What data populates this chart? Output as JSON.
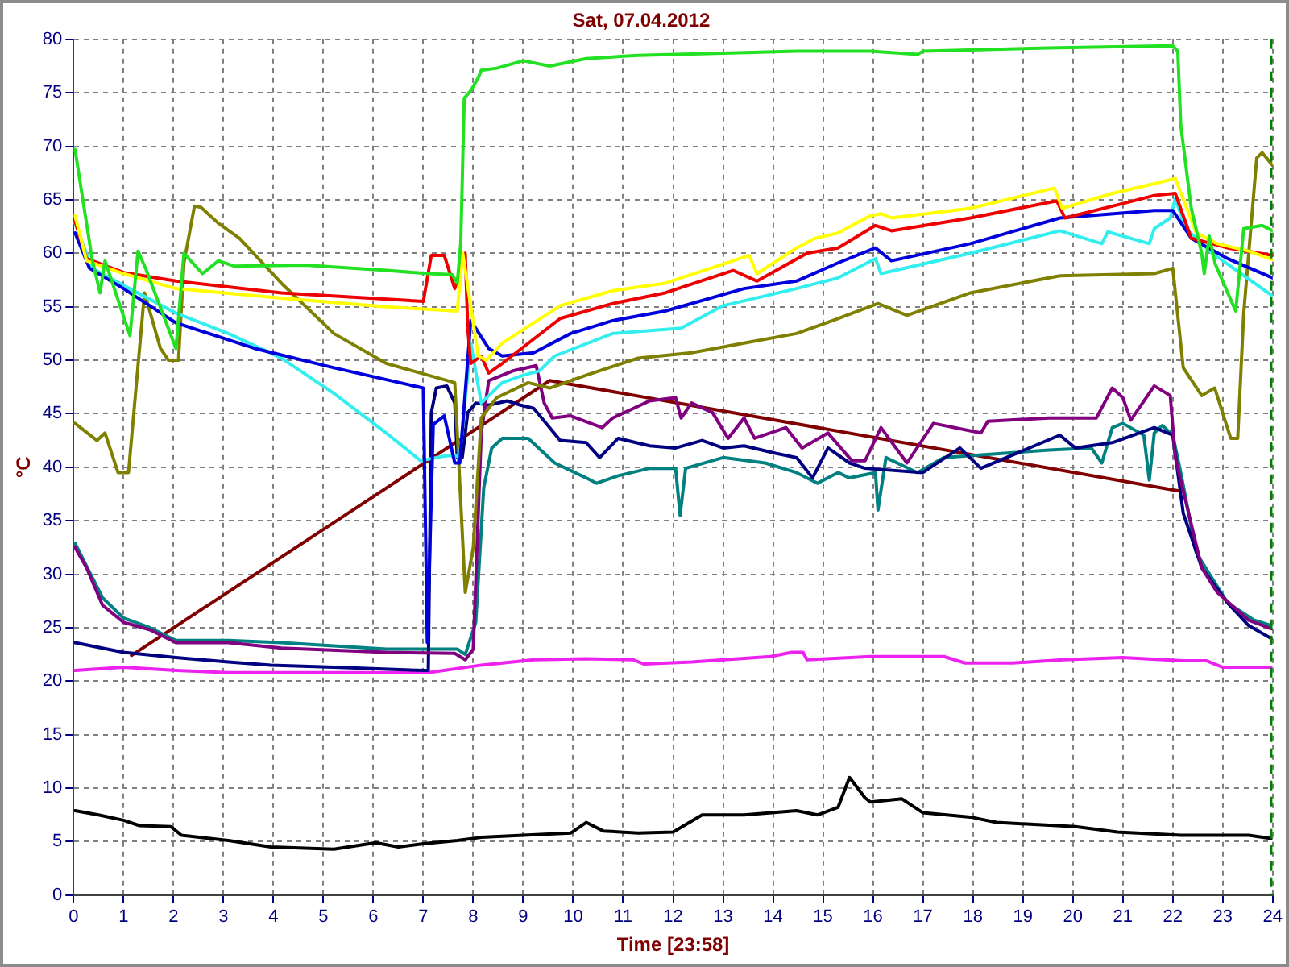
{
  "chart_data": {
    "type": "line",
    "title": "Sat, 07.04.2012",
    "xlabel": "Time [23:58]",
    "ylabel": "°C",
    "xlim": [
      0,
      24
    ],
    "xticks": [
      0,
      1,
      2,
      3,
      4,
      5,
      6,
      7,
      8,
      9,
      10,
      11,
      12,
      13,
      14,
      15,
      16,
      17,
      18,
      19,
      20,
      21,
      22,
      23,
      24
    ],
    "ylim": [
      0,
      80
    ],
    "yticks": [
      0,
      5,
      10,
      15,
      20,
      25,
      30,
      35,
      40,
      45,
      50,
      55,
      60,
      65,
      70,
      75,
      80
    ],
    "grid": true,
    "marker": "none",
    "ref_lines": [
      {
        "axis": "x",
        "value": 23.97,
        "color": "#008000",
        "line_style": "dashed"
      }
    ],
    "series": [
      {
        "color": "#22e022",
        "x": [
          0.03,
          0.37,
          0.53,
          0.63,
          1.13,
          1.29,
          1.45,
          2.05,
          2.21,
          2.58,
          2.9,
          3.21,
          4.63,
          6.26,
          7.1,
          7.58,
          7.68,
          7.75,
          7.82,
          7.95,
          8.1,
          8.16,
          8.47,
          9.0,
          9.53,
          10.26,
          11.3,
          13.0,
          14.47,
          15.95,
          16.9,
          17.0,
          19.5,
          22.0,
          22.1,
          22.16,
          22.37,
          22.58,
          22.63,
          22.73,
          22.85,
          23.1,
          23.26,
          23.42,
          23.79,
          24.0
        ],
        "values": [
          69.7,
          59.5,
          56.3,
          59.3,
          52.3,
          60.2,
          58.5,
          51.1,
          60.0,
          58.1,
          59.3,
          58.8,
          58.9,
          58.4,
          58.1,
          58.0,
          57.2,
          61.0,
          74.5,
          75.2,
          76.4,
          77.1,
          77.3,
          78.0,
          77.5,
          78.2,
          78.5,
          78.7,
          78.9,
          78.9,
          78.6,
          78.9,
          79.2,
          79.4,
          78.9,
          72.0,
          64.2,
          60.0,
          58.1,
          61.6,
          59.0,
          56.3,
          54.6,
          62.3,
          62.6,
          62.1
        ]
      },
      {
        "color": "#ffff00",
        "x": [
          0.03,
          0.26,
          1.0,
          2.05,
          4.16,
          6.26,
          7.68,
          7.79,
          8.1,
          8.26,
          8.58,
          9.74,
          10.79,
          11.84,
          13.2,
          13.52,
          13.68,
          14.47,
          14.84,
          15.3,
          15.95,
          16.16,
          16.37,
          17.95,
          19.63,
          19.79,
          20.79,
          21.63,
          22.05,
          22.47,
          22.89,
          23.52,
          24.0
        ],
        "values": [
          63.5,
          59.3,
          58.1,
          56.7,
          55.8,
          55.0,
          54.6,
          60.0,
          50.4,
          50.0,
          51.6,
          55.1,
          56.5,
          57.2,
          59.3,
          59.8,
          58.1,
          60.5,
          61.4,
          61.9,
          63.5,
          63.7,
          63.3,
          64.2,
          66.1,
          64.2,
          65.6,
          66.5,
          67.0,
          61.9,
          60.9,
          60.2,
          59.4
        ]
      },
      {
        "color": "#ee0000",
        "x": [
          0.03,
          0.26,
          1.0,
          2.05,
          4.16,
          7.0,
          7.16,
          7.42,
          7.63,
          7.84,
          7.89,
          7.95,
          8.16,
          8.31,
          8.58,
          9.74,
          10.79,
          11.84,
          13.2,
          13.68,
          14.68,
          15.3,
          16.05,
          16.37,
          17.95,
          19.68,
          19.84,
          20.79,
          21.63,
          22.05,
          22.37,
          23.1,
          24.0
        ],
        "values": [
          63.0,
          59.5,
          58.2,
          57.4,
          56.3,
          55.5,
          59.8,
          59.8,
          56.7,
          60.0,
          53.0,
          49.7,
          50.4,
          48.8,
          49.7,
          53.9,
          55.3,
          56.3,
          58.4,
          57.4,
          60.0,
          60.5,
          62.6,
          62.1,
          63.3,
          64.9,
          63.3,
          64.4,
          65.4,
          65.6,
          61.4,
          60.5,
          59.8
        ]
      },
      {
        "color": "#0000dd",
        "x": [
          0.03,
          0.32,
          1.0,
          2.05,
          3.63,
          5.21,
          7.0,
          7.08,
          7.2,
          7.42,
          7.63,
          7.73,
          7.95,
          8.31,
          8.58,
          9.21,
          9.95,
          10.79,
          11.84,
          13.42,
          14.47,
          15.3,
          16.05,
          16.37,
          17.95,
          19.74,
          21.63,
          22.0,
          22.37,
          23.1,
          24.0
        ],
        "values": [
          61.9,
          58.6,
          56.7,
          53.5,
          51.1,
          49.3,
          47.4,
          23.6,
          44.0,
          44.8,
          40.4,
          40.4,
          53.7,
          51.1,
          50.4,
          50.7,
          52.5,
          53.7,
          54.6,
          56.7,
          57.4,
          59.1,
          60.5,
          59.3,
          60.9,
          63.3,
          64.0,
          64.0,
          61.4,
          59.5,
          57.7
        ]
      },
      {
        "color": "#33eeee",
        "x": [
          0.03,
          0.37,
          1.0,
          2.05,
          3.1,
          4.16,
          5.21,
          6.26,
          6.95,
          7.37,
          7.52,
          7.73,
          7.95,
          8.16,
          8.58,
          9.0,
          9.32,
          9.63,
          10.79,
          12.16,
          13.0,
          14.47,
          15.3,
          16.05,
          16.16,
          17.95,
          19.74,
          20.58,
          20.7,
          21.53,
          21.63,
          21.95,
          22.05,
          22.26,
          22.79,
          24.0
        ],
        "values": [
          62.8,
          58.6,
          57.0,
          54.4,
          52.5,
          50.2,
          46.9,
          43.2,
          40.6,
          41.0,
          41.1,
          41.0,
          51.6,
          46.0,
          47.9,
          48.6,
          49.0,
          50.4,
          52.5,
          53.0,
          55.1,
          56.7,
          57.7,
          59.5,
          58.1,
          60.0,
          62.1,
          60.9,
          62.0,
          60.9,
          62.3,
          63.3,
          65.1,
          62.3,
          60.0,
          56.0
        ]
      },
      {
        "color": "#808000",
        "x": [
          0.03,
          0.47,
          0.63,
          0.89,
          1.1,
          1.42,
          1.74,
          1.9,
          2.1,
          2.21,
          2.42,
          2.55,
          2.9,
          3.32,
          4.16,
          5.21,
          6.26,
          7.63,
          7.84,
          8.0,
          8.16,
          8.47,
          9.1,
          9.53,
          10.26,
          11.3,
          12.37,
          13.42,
          14.47,
          15.3,
          16.1,
          16.68,
          17.95,
          19.74,
          21.63,
          22.0,
          22.21,
          22.58,
          22.84,
          23.16,
          23.3,
          23.42,
          23.68,
          23.79,
          24.0
        ],
        "values": [
          44.1,
          42.5,
          43.2,
          39.5,
          39.5,
          56.3,
          51.1,
          50.0,
          50.0,
          59.1,
          64.4,
          64.3,
          62.8,
          61.4,
          57.2,
          52.5,
          49.7,
          47.9,
          28.3,
          32.5,
          44.6,
          46.5,
          47.9,
          47.4,
          48.6,
          50.2,
          50.7,
          51.6,
          52.5,
          53.9,
          55.3,
          54.2,
          56.3,
          57.9,
          58.1,
          58.6,
          49.3,
          46.7,
          47.4,
          42.7,
          42.7,
          54.4,
          68.9,
          69.4,
          68.2
        ]
      },
      {
        "color": "#800080",
        "x": [
          0.03,
          0.26,
          0.58,
          1.0,
          1.53,
          2.05,
          3.1,
          4.16,
          6.26,
          7.63,
          7.84,
          8.0,
          8.16,
          8.31,
          8.79,
          9.26,
          9.42,
          9.58,
          9.95,
          10.58,
          10.79,
          11.53,
          12.05,
          12.16,
          12.37,
          12.79,
          13.1,
          13.42,
          13.63,
          14.26,
          14.58,
          15.1,
          15.58,
          15.84,
          16.16,
          16.68,
          17.21,
          18.16,
          18.3,
          19.52,
          20.47,
          20.79,
          21.0,
          21.16,
          21.63,
          21.95,
          22.05,
          22.58,
          22.89,
          23.52,
          23.97
        ],
        "values": [
          32.5,
          30.6,
          27.1,
          25.5,
          24.8,
          23.6,
          23.6,
          23.1,
          22.7,
          22.6,
          22.0,
          23.0,
          43.2,
          48.1,
          49.0,
          49.5,
          46.0,
          44.6,
          44.8,
          43.7,
          44.6,
          46.2,
          46.5,
          44.6,
          46.0,
          45.1,
          42.7,
          44.6,
          42.7,
          43.7,
          41.8,
          43.2,
          40.6,
          40.6,
          43.7,
          40.4,
          44.1,
          43.2,
          44.3,
          44.6,
          44.6,
          47.4,
          46.5,
          44.4,
          47.6,
          46.7,
          40.9,
          30.6,
          28.3,
          25.7,
          24.9
        ]
      },
      {
        "color": "#000080",
        "x": [
          0.03,
          1.0,
          2.05,
          3.1,
          3.95,
          5.21,
          7.0,
          7.1,
          7.16,
          7.26,
          7.47,
          7.63,
          7.68,
          7.78,
          7.89,
          8.05,
          8.31,
          8.68,
          8.95,
          9.21,
          9.53,
          9.74,
          10.26,
          10.53,
          10.9,
          11.53,
          12.05,
          12.58,
          13.0,
          13.42,
          14.05,
          14.47,
          14.79,
          15.1,
          15.53,
          15.84,
          17.0,
          17.74,
          18.16,
          19.74,
          20.05,
          20.79,
          21.63,
          22.0,
          22.21,
          22.58,
          23.1,
          23.52,
          23.97
        ],
        "values": [
          23.6,
          22.7,
          22.2,
          21.8,
          21.5,
          21.3,
          21.0,
          21.0,
          45.1,
          47.4,
          47.6,
          46.0,
          40.9,
          40.9,
          45.1,
          46.0,
          45.8,
          46.2,
          45.8,
          45.5,
          43.7,
          42.5,
          42.3,
          40.9,
          42.7,
          42.0,
          41.8,
          42.5,
          41.8,
          42.0,
          41.3,
          40.9,
          39.0,
          41.8,
          40.4,
          39.9,
          39.5,
          41.8,
          39.9,
          43.0,
          41.8,
          42.3,
          43.7,
          43.0,
          35.7,
          30.6,
          27.3,
          25.2,
          24.0
        ]
      },
      {
        "color": "#008080",
        "x": [
          0.03,
          0.58,
          1.0,
          1.53,
          2.05,
          3.1,
          4.16,
          6.26,
          7.68,
          7.84,
          8.05,
          8.21,
          8.37,
          8.58,
          9.1,
          9.63,
          10.26,
          10.47,
          10.9,
          11.53,
          12.05,
          12.14,
          12.25,
          13.0,
          13.84,
          14.47,
          14.89,
          15.3,
          15.53,
          16.05,
          16.1,
          16.26,
          16.89,
          17.42,
          19.52,
          20.37,
          20.58,
          20.79,
          21.0,
          21.42,
          21.53,
          21.63,
          21.79,
          22.0,
          22.16,
          22.47,
          23.1,
          23.63,
          23.97
        ],
        "values": [
          32.9,
          27.8,
          25.9,
          25.0,
          23.8,
          23.8,
          23.6,
          23.0,
          23.0,
          22.5,
          25.5,
          38.1,
          41.8,
          42.7,
          42.7,
          40.4,
          39.0,
          38.5,
          39.2,
          39.9,
          39.9,
          35.5,
          39.9,
          40.9,
          40.4,
          39.5,
          38.5,
          39.5,
          39.0,
          39.5,
          36.0,
          40.9,
          39.5,
          40.9,
          41.6,
          41.8,
          40.4,
          43.7,
          44.1,
          43.0,
          38.8,
          43.2,
          43.9,
          43.0,
          39.5,
          32.0,
          27.3,
          25.7,
          25.2
        ]
      },
      {
        "color": "#800000",
        "x": [
          1.16,
          9.53,
          22.1
        ],
        "values": [
          22.4,
          48.1,
          37.8
        ]
      },
      {
        "color": "#ee22ee",
        "x": [
          0.03,
          1.0,
          2.05,
          3.1,
          6.26,
          7.1,
          8.16,
          9.21,
          10.26,
          11.2,
          11.42,
          12.37,
          13.95,
          14.37,
          14.6,
          14.68,
          15.95,
          17.42,
          17.84,
          18.79,
          19.8,
          21.0,
          22.2,
          22.68,
          23.0,
          23.97
        ],
        "values": [
          21.0,
          21.3,
          21.0,
          20.8,
          20.8,
          20.8,
          21.5,
          22.0,
          22.1,
          22.0,
          21.6,
          21.8,
          22.3,
          22.7,
          22.7,
          22.0,
          22.3,
          22.3,
          21.7,
          21.7,
          22.0,
          22.2,
          21.9,
          21.9,
          21.3,
          21.3
        ]
      },
      {
        "color": "#000000",
        "x": [
          0.03,
          0.5,
          1.0,
          1.32,
          1.95,
          2.16,
          3.1,
          3.95,
          5.21,
          6.05,
          6.5,
          7.0,
          7.68,
          8.16,
          9.0,
          9.95,
          10.26,
          10.6,
          11.3,
          12.0,
          12.58,
          13.42,
          14.47,
          14.89,
          15.3,
          15.53,
          15.84,
          15.95,
          16.58,
          17.0,
          17.95,
          18.47,
          20.05,
          20.89,
          22.16,
          23.52,
          23.97
        ],
        "values": [
          7.9,
          7.5,
          7.0,
          6.5,
          6.4,
          5.6,
          5.1,
          4.5,
          4.3,
          4.9,
          4.5,
          4.8,
          5.1,
          5.4,
          5.6,
          5.8,
          6.8,
          6.0,
          5.8,
          5.9,
          7.5,
          7.5,
          7.9,
          7.5,
          8.2,
          11.0,
          9.1,
          8.7,
          9.0,
          7.7,
          7.3,
          6.8,
          6.4,
          5.9,
          5.6,
          5.6,
          5.3
        ]
      }
    ]
  }
}
